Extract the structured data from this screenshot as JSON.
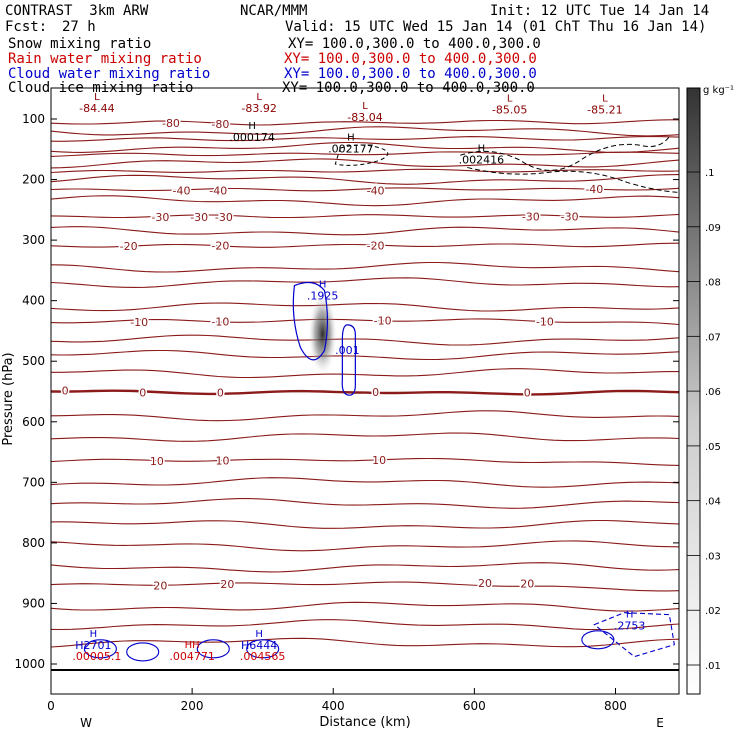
{
  "header": {
    "model": "CONTRAST  3km ARW",
    "center": "NCAR/MMM",
    "init": "Init: 12 UTC Tue 14 Jan 14",
    "fcst_label": "Fcst:",
    "fcst_value": "27 h",
    "valid": "Valid: 15 UTC Wed 15 Jan 14 (01 ChT Thu 16 Jan 14)"
  },
  "fields": [
    {
      "name": "Snow mixing ratio",
      "xy": "XY= 100.0,300.0 to 400.0,300.0",
      "color": "#000000"
    },
    {
      "name": "Rain water mixing ratio",
      "xy": "XY= 100.0,300.0 to 400.0,300.0",
      "color": "#cc0000"
    },
    {
      "name": "Cloud water mixing ratio",
      "xy": "XY= 100.0,300.0 to 400.0,300.0",
      "color": "#0000cc"
    },
    {
      "name": "Cloud ice mixing ratio",
      "xy": "XY= 100.0,300.0 to 400.0,300.0",
      "color": "#000000"
    }
  ],
  "chart_data": {
    "type": "contour",
    "xlabel": "Distance (km)",
    "ylabel": "Pressure (hPa)",
    "xlim": [
      0,
      890
    ],
    "ylim": [
      1050,
      50
    ],
    "x_ticks": [
      0,
      200,
      400,
      600,
      800
    ],
    "y_ticks": [
      100,
      200,
      300,
      400,
      500,
      600,
      700,
      800,
      900,
      1000
    ],
    "x_end_labels": {
      "left": "W",
      "right": "E"
    },
    "colorbar": {
      "unit": "g kg⁻¹",
      "ticks": [
        ".01",
        ".02",
        ".03",
        ".04",
        ".05",
        ".06",
        ".07",
        ".08",
        ".09",
        ".1"
      ]
    },
    "temperature_contours": [
      {
        "level": -80,
        "p": [
          107,
          105,
          108,
          106,
          104,
          106,
          103
        ]
      },
      {
        "level": -70,
        "p": [
          135,
          133,
          134,
          132,
          131,
          133,
          130
        ]
      },
      {
        "level": -60,
        "p": [
          160,
          158,
          159,
          157,
          156,
          158,
          155
        ]
      },
      {
        "level": -50,
        "p": [
          188,
          186,
          187,
          185,
          185,
          186,
          184
        ]
      },
      {
        "level": -40,
        "p": [
          218,
          216,
          217,
          216,
          215,
          217,
          214
        ]
      },
      {
        "level": -30,
        "p": [
          262,
          260,
          261,
          260,
          260,
          261,
          259
        ]
      },
      {
        "level": -20,
        "p": [
          310,
          309,
          310,
          309,
          308,
          309,
          307
        ]
      },
      {
        "level": -10,
        "p": [
          435,
          433,
          434,
          432,
          432,
          434,
          440
        ]
      },
      {
        "level": 0,
        "p": [
          548,
          552,
          552,
          550,
          554,
          552,
          550
        ]
      },
      {
        "level": 10,
        "p": [
          665,
          663,
          664,
          662,
          663,
          668,
          670
        ]
      },
      {
        "level": 20,
        "p": [
          870,
          868,
          868,
          866,
          868,
          875,
          878
        ]
      }
    ],
    "contour_x": [
      0,
      150,
      300,
      450,
      600,
      750,
      890
    ],
    "temperature_labels": [
      {
        "text": "-80",
        "x": 170,
        "p": 107
      },
      {
        "text": "-80",
        "x": 240,
        "p": 108
      },
      {
        "text": "-40",
        "x": 185,
        "p": 218
      },
      {
        "text": "-40",
        "x": 237,
        "p": 218
      },
      {
        "text": "-40",
        "x": 460,
        "p": 218
      },
      {
        "text": "-40",
        "x": 770,
        "p": 216
      },
      {
        "text": "-30",
        "x": 155,
        "p": 262
      },
      {
        "text": "-30",
        "x": 210,
        "p": 262
      },
      {
        "text": "-30",
        "x": 245,
        "p": 262
      },
      {
        "text": "-30",
        "x": 680,
        "p": 261
      },
      {
        "text": "-30",
        "x": 735,
        "p": 261
      },
      {
        "text": "-20",
        "x": 110,
        "p": 310
      },
      {
        "text": "-20",
        "x": 240,
        "p": 309
      },
      {
        "text": "-20",
        "x": 460,
        "p": 309
      },
      {
        "text": "-10",
        "x": 125,
        "p": 435
      },
      {
        "text": "-10",
        "x": 240,
        "p": 434
      },
      {
        "text": "-10",
        "x": 470,
        "p": 433
      },
      {
        "text": "-10",
        "x": 700,
        "p": 434
      },
      {
        "text": "0",
        "x": 20,
        "p": 548
      },
      {
        "text": "0",
        "x": 130,
        "p": 552
      },
      {
        "text": "0",
        "x": 240,
        "p": 552
      },
      {
        "text": "0",
        "x": 460,
        "p": 551
      },
      {
        "text": "0",
        "x": 675,
        "p": 552
      },
      {
        "text": "10",
        "x": 150,
        "p": 665
      },
      {
        "text": "10",
        "x": 243,
        "p": 664
      },
      {
        "text": "10",
        "x": 465,
        "p": 663
      },
      {
        "text": "20",
        "x": 155,
        "p": 870
      },
      {
        "text": "20",
        "x": 250,
        "p": 868
      },
      {
        "text": "20",
        "x": 615,
        "p": 866
      },
      {
        "text": "20",
        "x": 675,
        "p": 867
      }
    ],
    "extrema_labels": [
      {
        "mark": "L",
        "value": "-84.44",
        "x": 65,
        "p": 85,
        "color": "#8b0000"
      },
      {
        "mark": "L",
        "value": "-83.92",
        "x": 295,
        "p": 85,
        "color": "#8b0000"
      },
      {
        "mark": "L",
        "value": "-83.04",
        "x": 445,
        "p": 100,
        "color": "#8b0000"
      },
      {
        "mark": "L",
        "value": "-85.05",
        "x": 650,
        "p": 88,
        "color": "#8b0000"
      },
      {
        "mark": "L",
        "value": "-85.21",
        "x": 785,
        "p": 88,
        "color": "#8b0000"
      },
      {
        "mark": "H",
        "value": ".000174",
        "x": 285,
        "p": 133,
        "color": "#000000"
      },
      {
        "mark": "H",
        "value": ".002177",
        "x": 425,
        "p": 152,
        "color": "#000000"
      },
      {
        "mark": "H",
        "value": ".002416",
        "x": 610,
        "p": 170,
        "color": "#000000"
      },
      {
        "mark": "H",
        "value": ".1925",
        "x": 385,
        "p": 395,
        "color": "#0000cc"
      },
      {
        "mark": "",
        "value": ".001",
        "x": 420,
        "p": 485,
        "color": "#0000cc"
      },
      {
        "mark": "H",
        "value": "H2701",
        "x": 60,
        "p": 972,
        "color": "#0000cc"
      },
      {
        "mark": "",
        "value": ".00005.1",
        "x": 65,
        "p": 990,
        "color": "#cc0000"
      },
      {
        "mark": "HH",
        "value": ".004771",
        "x": 200,
        "p": 990,
        "color": "#cc0000"
      },
      {
        "mark": "H",
        "value": "H6444",
        "x": 295,
        "p": 972,
        "color": "#0000cc"
      },
      {
        "mark": "",
        "value": ".004565",
        "x": 300,
        "p": 990,
        "color": "#cc0000"
      },
      {
        "mark": "H",
        "value": ".2753",
        "x": 820,
        "p": 940,
        "color": "#0000cc"
      }
    ]
  }
}
